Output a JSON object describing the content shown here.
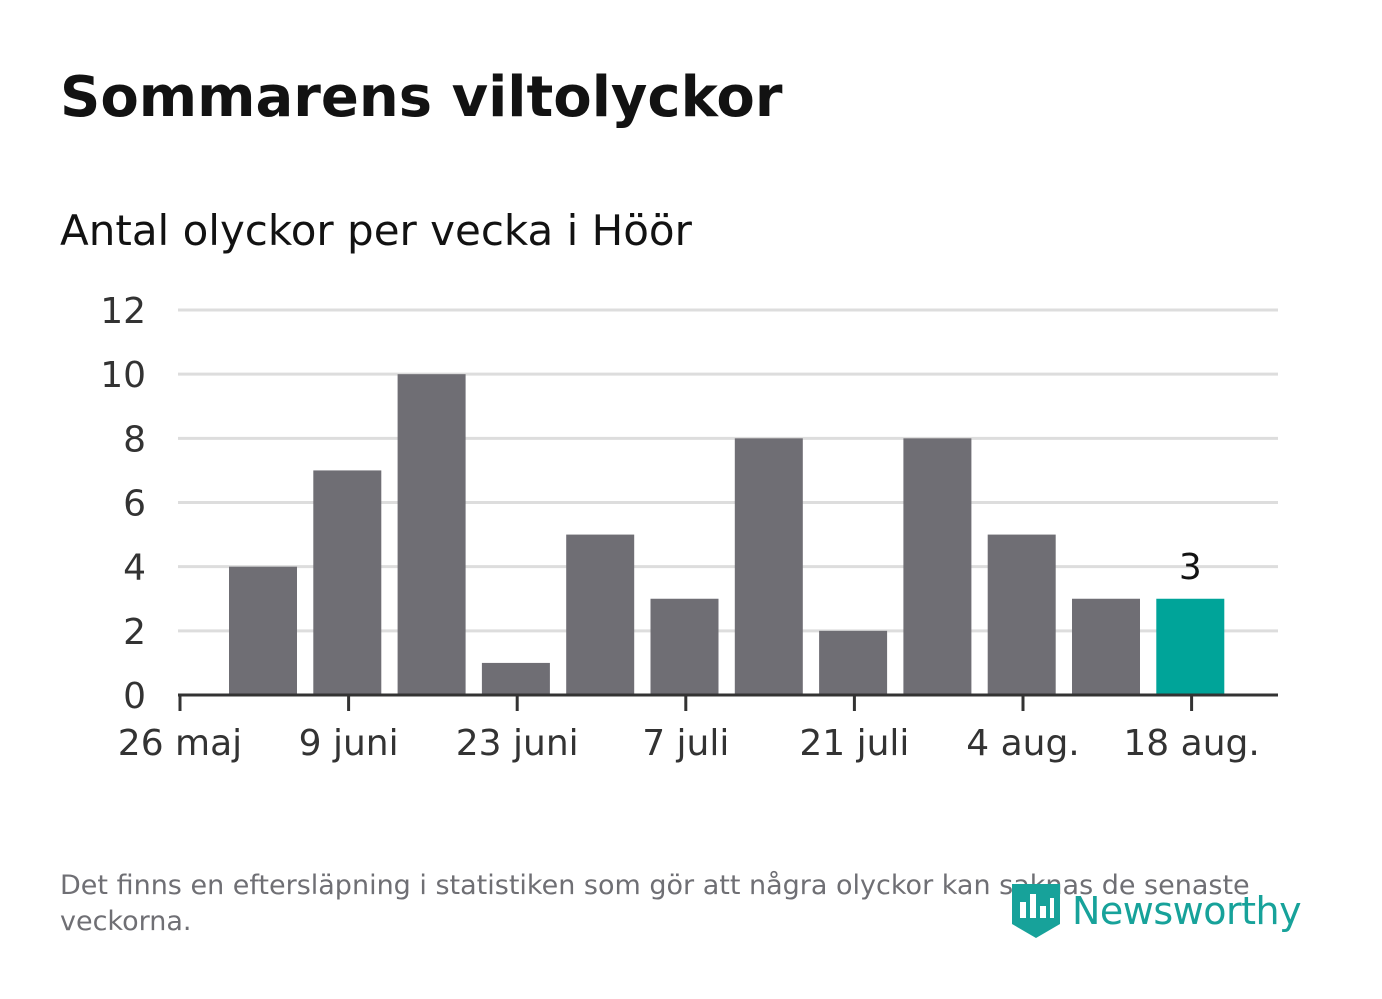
{
  "title": "Sommarens viltolyckor",
  "subtitle": "Antal olyckor per vecka i Höör",
  "footnote": "Det finns en eftersläpning i statistiken som gör att några olyckor kan saknas de senaste veckorna.",
  "brand": {
    "name": "Newsworthy",
    "icon": "newsworthy-logo-icon",
    "color": "#17a29a"
  },
  "chart_data": {
    "type": "bar",
    "title": "Antal olyckor per vecka i Höör",
    "xlabel": "",
    "ylabel": "",
    "ylim": [
      0,
      12
    ],
    "y_ticks": [
      "0",
      "2",
      "4",
      "6",
      "8",
      "10",
      "12"
    ],
    "x_tick_labels": [
      "26 maj",
      "9 juni",
      "23 juni",
      "7 juli",
      "21 juli",
      "4 aug.",
      "18 aug."
    ],
    "grid": true,
    "values": [
      4,
      7,
      10,
      1,
      5,
      3,
      8,
      2,
      8,
      5,
      3,
      3
    ],
    "highlight_index": 11,
    "highlight_label": "3",
    "colors": {
      "bar": "#6f6e74",
      "highlight": "#00a499",
      "grid": "#dddddd",
      "axis": "#333333"
    }
  }
}
